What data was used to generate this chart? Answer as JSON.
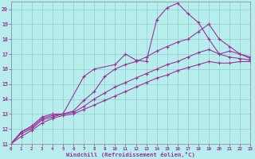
{
  "xlabel": "Windchill (Refroidissement éolien,°C)",
  "bg_color": "#b8eded",
  "grid_color": "#90cccc",
  "line_color": "#993399",
  "xlim": [
    0,
    23
  ],
  "ylim": [
    11,
    20.5
  ],
  "xticks": [
    0,
    1,
    2,
    3,
    4,
    5,
    6,
    7,
    8,
    9,
    10,
    11,
    12,
    13,
    14,
    15,
    16,
    17,
    18,
    19,
    20,
    21,
    22,
    23
  ],
  "yticks": [
    11,
    12,
    13,
    14,
    15,
    16,
    17,
    18,
    19,
    20
  ],
  "series": [
    {
      "x": [
        0,
        1,
        2,
        3,
        4,
        5,
        7,
        8,
        10,
        11,
        12,
        13,
        14,
        15,
        16,
        17,
        18,
        19,
        20,
        21,
        22,
        23
      ],
      "y": [
        11,
        11.8,
        12.2,
        12.8,
        13.0,
        13.0,
        15.5,
        16.0,
        16.3,
        17.0,
        16.6,
        16.5,
        19.3,
        20.1,
        20.4,
        19.7,
        19.1,
        18.0,
        17.0,
        17.2,
        17.0,
        16.7
      ]
    },
    {
      "x": [
        0,
        1,
        2,
        3,
        4,
        5,
        6,
        7,
        8,
        9,
        10,
        11,
        12,
        13,
        14,
        15,
        16,
        17,
        18,
        19,
        20,
        21,
        22,
        23
      ],
      "y": [
        11,
        11.8,
        12.1,
        12.7,
        12.9,
        13.0,
        13.2,
        13.9,
        14.5,
        15.5,
        16.0,
        16.3,
        16.5,
        16.8,
        17.2,
        17.5,
        17.8,
        18.0,
        18.5,
        19.0,
        18.0,
        17.5,
        17.0,
        16.8
      ]
    },
    {
      "x": [
        0,
        1,
        2,
        3,
        4,
        5,
        6,
        7,
        8,
        9,
        10,
        11,
        12,
        13,
        14,
        15,
        16,
        17,
        18,
        19,
        20,
        21,
        22,
        23
      ],
      "y": [
        11,
        11.7,
        12.0,
        12.6,
        12.8,
        13.0,
        13.1,
        13.5,
        14.0,
        14.4,
        14.8,
        15.1,
        15.4,
        15.7,
        16.0,
        16.3,
        16.5,
        16.8,
        17.1,
        17.3,
        17.0,
        16.8,
        16.7,
        16.6
      ]
    },
    {
      "x": [
        0,
        1,
        2,
        3,
        4,
        5,
        6,
        7,
        8,
        9,
        10,
        11,
        12,
        13,
        14,
        15,
        16,
        17,
        18,
        19,
        20,
        21,
        22,
        23
      ],
      "y": [
        11,
        11.5,
        11.9,
        12.4,
        12.7,
        12.9,
        13.0,
        13.3,
        13.6,
        13.9,
        14.2,
        14.5,
        14.8,
        15.1,
        15.4,
        15.6,
        15.9,
        16.1,
        16.3,
        16.5,
        16.4,
        16.4,
        16.5,
        16.5
      ]
    }
  ]
}
